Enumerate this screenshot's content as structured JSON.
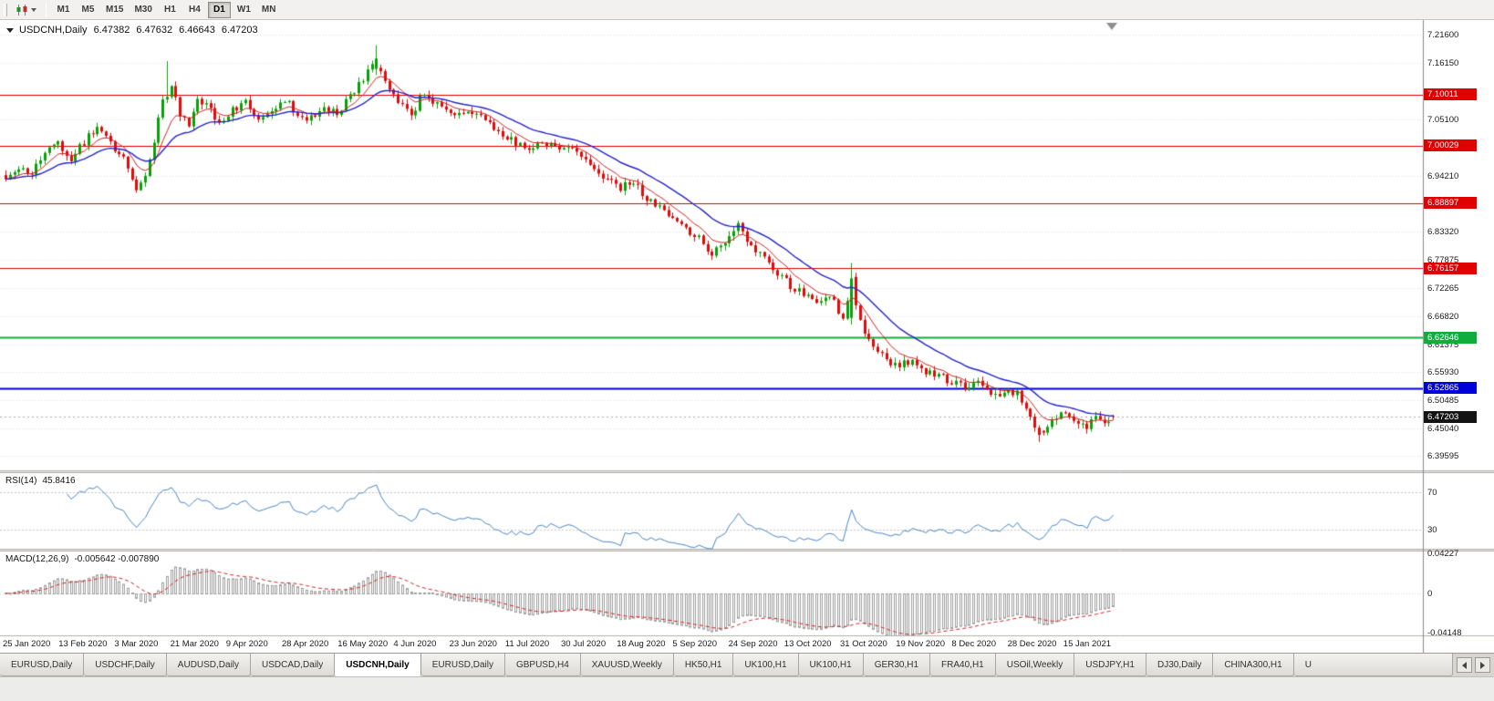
{
  "toolbar": {
    "timeframes": [
      {
        "label": "M1"
      },
      {
        "label": "M5"
      },
      {
        "label": "M15"
      },
      {
        "label": "M30"
      },
      {
        "label": "H1"
      },
      {
        "label": "H4"
      },
      {
        "label": "D1",
        "active": true
      },
      {
        "label": "W1"
      },
      {
        "label": "MN"
      }
    ]
  },
  "chart_data": {
    "type": "candlestick",
    "symbol": "USDCNH",
    "period": "Daily",
    "title": "USDCNH,Daily",
    "current_bar": {
      "open": "6.47382",
      "high": "6.47632",
      "low": "6.46643",
      "close": "6.47203"
    },
    "current_price": {
      "value": 6.47203,
      "label": "6.47203",
      "color": "#141414"
    },
    "price_range": [
      6.368,
      7.245
    ],
    "bars_count": 255,
    "bar_colors": {
      "up": "#06a306",
      "down": "#e20a0a"
    },
    "ma_lines": [
      {
        "name": "fast-ma",
        "period": 8,
        "color": "#d42222"
      },
      {
        "name": "slow-ma",
        "period": 21,
        "color": "#2626cc"
      }
    ],
    "price_axis_labels": [
      "7.21600",
      "7.16150",
      "7.05100",
      "6.94210",
      "6.83320",
      "6.77875",
      "6.72265",
      "6.66820",
      "6.61375",
      "6.55930",
      "6.50485",
      "6.45040",
      "6.39595"
    ],
    "x_labels": [
      "25 Jan 2020",
      "13 Feb 2020",
      "3 Mar 2020",
      "21 Mar 2020",
      "9 Apr 2020",
      "28 Apr 2020",
      "16 May 2020",
      "4 Jun 2020",
      "23 Jun 2020",
      "11 Jul 2020",
      "30 Jul 2020",
      "18 Aug 2020",
      "5 Sep 2020",
      "24 Sep 2020",
      "13 Oct 2020",
      "31 Oct 2020",
      "19 Nov 2020",
      "8 Dec 2020",
      "28 Dec 2020",
      "15 Jan 2021"
    ],
    "hlines": [
      {
        "value": 7.10011,
        "label": "7.10011",
        "color": "#e00000",
        "width": 1
      },
      {
        "value": 7.00029,
        "label": "7.00029",
        "color": "#e00000",
        "width": 1
      },
      {
        "value": 6.88897,
        "label": "6.88897",
        "color": "#e00000",
        "width": 1
      },
      {
        "value": 6.76157,
        "label": "6.76157",
        "color": "#e00000",
        "width": 1
      },
      {
        "value": 6.62646,
        "label": "6.62646",
        "color": "#0fae3c",
        "width": 2
      },
      {
        "value": 6.52865,
        "label": "6.52865",
        "color": "#0000dc",
        "width": 2
      }
    ],
    "price_path_anchors": [
      [
        0,
        6.935
      ],
      [
        3,
        6.962
      ],
      [
        6,
        6.948
      ],
      [
        9,
        6.985
      ],
      [
        12,
        7.004
      ],
      [
        15,
        6.976
      ],
      [
        18,
        7.008
      ],
      [
        21,
        7.034
      ],
      [
        24,
        7.006
      ],
      [
        27,
        6.976
      ],
      [
        30,
        6.92
      ],
      [
        32,
        6.936
      ],
      [
        34,
        7.01
      ],
      [
        36,
        7.085
      ],
      [
        38,
        7.118
      ],
      [
        40,
        7.062
      ],
      [
        42,
        7.046
      ],
      [
        44,
        7.094
      ],
      [
        46,
        7.078
      ],
      [
        49,
        7.046
      ],
      [
        52,
        7.068
      ],
      [
        55,
        7.084
      ],
      [
        58,
        7.058
      ],
      [
        61,
        7.074
      ],
      [
        64,
        7.09
      ],
      [
        67,
        7.064
      ],
      [
        70,
        7.052
      ],
      [
        73,
        7.08
      ],
      [
        76,
        7.062
      ],
      [
        79,
        7.098
      ],
      [
        82,
        7.132
      ],
      [
        84,
        7.162
      ],
      [
        86,
        7.144
      ],
      [
        88,
        7.108
      ],
      [
        90,
        7.082
      ],
      [
        93,
        7.062
      ],
      [
        96,
        7.104
      ],
      [
        99,
        7.082
      ],
      [
        102,
        7.062
      ],
      [
        105,
        7.07
      ],
      [
        108,
        7.058
      ],
      [
        111,
        7.04
      ],
      [
        114,
        7.022
      ],
      [
        117,
        7.004
      ],
      [
        120,
        6.993
      ],
      [
        123,
        7.008
      ],
      [
        126,
        6.993
      ],
      [
        129,
        7.0
      ],
      [
        132,
        6.973
      ],
      [
        135,
        6.953
      ],
      [
        138,
        6.932
      ],
      [
        141,
        6.918
      ],
      [
        144,
        6.928
      ],
      [
        147,
        6.898
      ],
      [
        150,
        6.878
      ],
      [
        153,
        6.853
      ],
      [
        156,
        6.838
      ],
      [
        159,
        6.822
      ],
      [
        162,
        6.79
      ],
      [
        165,
        6.818
      ],
      [
        168,
        6.843
      ],
      [
        171,
        6.808
      ],
      [
        174,
        6.778
      ],
      [
        177,
        6.752
      ],
      [
        180,
        6.728
      ],
      [
        183,
        6.712
      ],
      [
        186,
        6.692
      ],
      [
        189,
        6.705
      ],
      [
        192,
        6.668
      ],
      [
        194,
        6.74
      ],
      [
        196,
        6.655
      ],
      [
        199,
        6.612
      ],
      [
        202,
        6.585
      ],
      [
        205,
        6.568
      ],
      [
        208,
        6.588
      ],
      [
        211,
        6.562
      ],
      [
        214,
        6.552
      ],
      [
        217,
        6.542
      ],
      [
        220,
        6.528
      ],
      [
        223,
        6.538
      ],
      [
        226,
        6.522
      ],
      [
        229,
        6.518
      ],
      [
        232,
        6.522
      ],
      [
        234,
        6.488
      ],
      [
        236,
        6.452
      ],
      [
        238,
        6.438
      ],
      [
        240,
        6.462
      ],
      [
        242,
        6.478
      ],
      [
        244,
        6.472
      ],
      [
        246,
        6.458
      ],
      [
        248,
        6.448
      ],
      [
        250,
        6.472
      ],
      [
        252,
        6.462
      ],
      [
        254,
        6.47203
      ]
    ],
    "candle_overrides": [
      {
        "i": 37,
        "h": 7.165
      },
      {
        "i": 85,
        "o": 7.15,
        "h": 7.196,
        "l": 7.138,
        "c": 7.17
      },
      {
        "i": 162,
        "l": 6.778
      },
      {
        "i": 194,
        "o": 6.665,
        "h": 6.772,
        "l": 6.652,
        "c": 6.742
      },
      {
        "i": 237,
        "o": 6.451,
        "h": 6.456,
        "l": 6.4235,
        "c": 6.437
      }
    ],
    "indicators": {
      "rsi": {
        "name": "RSI(14)",
        "value": "45.8416",
        "line_color": "#4a86c8",
        "levels": [
          70,
          30
        ],
        "level_labels": [
          "70",
          "30"
        ],
        "range": [
          10,
          90
        ]
      },
      "macd": {
        "name": "MACD(12,26,9)",
        "values": "-0.005642 -0.007890",
        "hist_color": "#a0a0a0",
        "signal_color": "#d42222",
        "axis_labels": [
          "0.04227",
          "0",
          "-0.04148"
        ],
        "range": [
          -0.0445,
          0.0445
        ]
      }
    }
  },
  "tabs": [
    {
      "label": "EURUSD,Daily"
    },
    {
      "label": "USDCHF,Daily"
    },
    {
      "label": "AUDUSD,Daily"
    },
    {
      "label": "USDCAD,Daily"
    },
    {
      "label": "USDCNH,Daily",
      "active": true
    },
    {
      "label": "EURUSD,Daily"
    },
    {
      "label": "GBPUSD,H4"
    },
    {
      "label": "XAUUSD,Weekly"
    },
    {
      "label": "HK50,H1"
    },
    {
      "label": "UK100,H1"
    },
    {
      "label": "UK100,H1"
    },
    {
      "label": "GER30,H1"
    },
    {
      "label": "FRA40,H1"
    },
    {
      "label": "USOil,Weekly"
    },
    {
      "label": "USDJPY,H1"
    },
    {
      "label": "DJ30,Daily"
    },
    {
      "label": "CHINA300,H1"
    },
    {
      "label": "U",
      "clipped": true
    }
  ]
}
